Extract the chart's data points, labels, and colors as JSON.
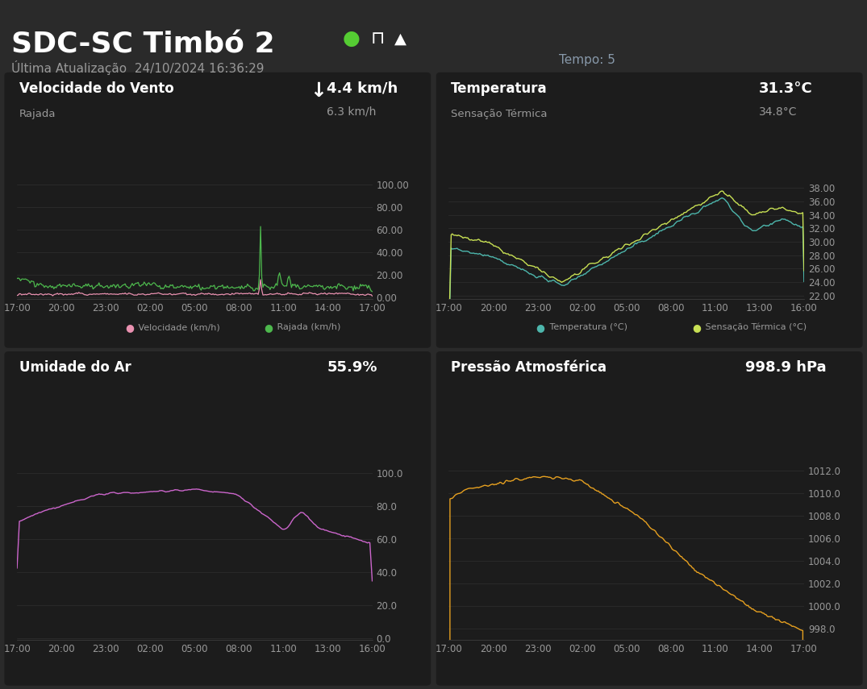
{
  "bg_color": "#2a2a2a",
  "panel_color": "#1c1c1c",
  "text_color": "#ffffff",
  "subtext_color": "#999999",
  "grid_color": "#383838",
  "title": "SDC-SC Timbó 2",
  "last_update": "Última Atualização  24/10/2024 16:36:29",
  "tempo": "Tempo: 5",
  "green_dot_color": "#55cc33",
  "wind_title": "Velocidade do Vento",
  "wind_subtitle": "Rajada",
  "wind_value": "4.4 km/h",
  "wind_subvalue": "6.3 km/h",
  "wind_yticks": [
    0.0,
    20.0,
    40.0,
    60.0,
    80.0,
    100.0
  ],
  "wind_xticks": [
    "17:00",
    "20:00",
    "23:00",
    "02:00",
    "05:00",
    "08:00",
    "11:00",
    "14:00",
    "17:00"
  ],
  "wind_vel_color": "#e991b0",
  "wind_raj_color": "#4db84d",
  "temp_title": "Temperatura",
  "temp_subtitle": "Sensação Térmica",
  "temp_value": "31.3°C",
  "temp_subvalue": "34.8°C",
  "temp_yticks": [
    22.0,
    24.0,
    26.0,
    28.0,
    30.0,
    32.0,
    34.0,
    36.0,
    38.0
  ],
  "temp_xticks": [
    "17:00",
    "20:00",
    "23:00",
    "02:00",
    "05:00",
    "08:00",
    "11:00",
    "13:00",
    "16:00"
  ],
  "temp_color": "#4db6ac",
  "temp_sens_color": "#c8e054",
  "hum_title": "Umidade do Ar",
  "hum_value": "55.9%",
  "hum_yticks": [
    0.0,
    20.0,
    40.0,
    60.0,
    80.0,
    100.0
  ],
  "hum_xticks": [
    "17:00",
    "20:00",
    "23:00",
    "02:00",
    "05:00",
    "08:00",
    "11:00",
    "13:00",
    "16:00"
  ],
  "hum_color": "#cc66cc",
  "pres_title": "Pressão Atmosférica",
  "pres_value": "998.9 hPa",
  "pres_yticks": [
    998.0,
    1000.0,
    1002.0,
    1004.0,
    1006.0,
    1008.0,
    1010.0,
    1012.0
  ],
  "pres_xticks": [
    "17:00",
    "20:00",
    "23:00",
    "02:00",
    "05:00",
    "08:00",
    "11:00",
    "14:00",
    "17:00"
  ],
  "pres_color": "#e6a020"
}
